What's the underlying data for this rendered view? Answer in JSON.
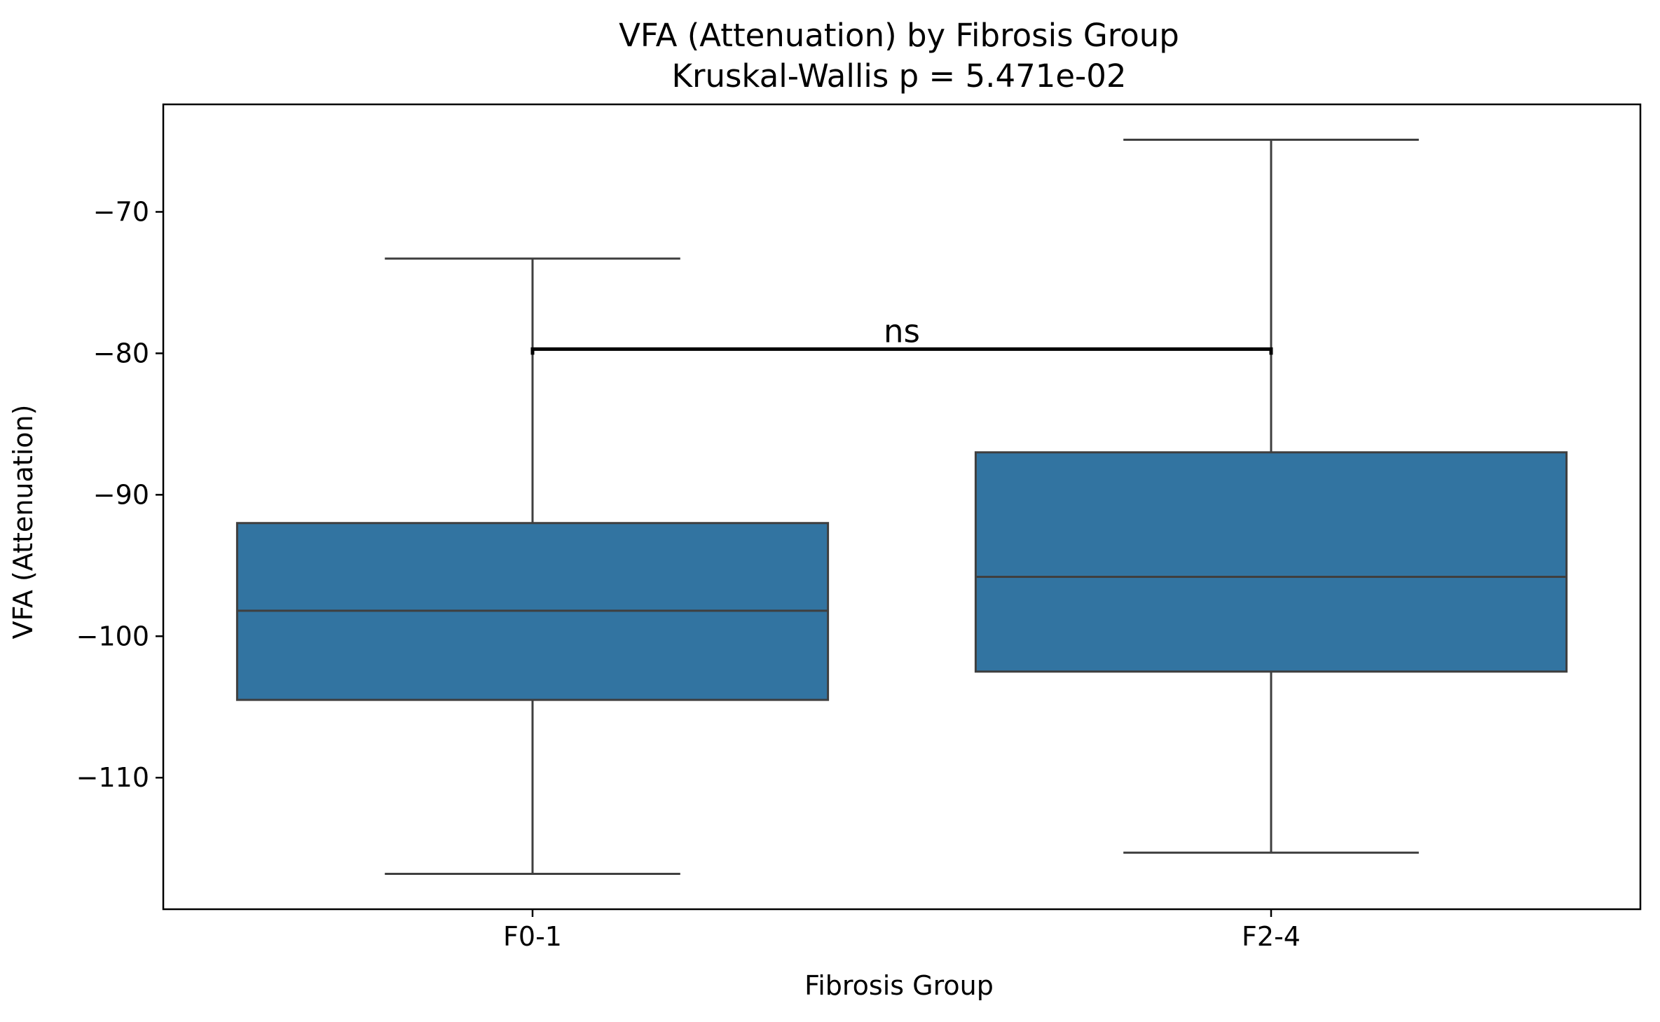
{
  "chart_data": {
    "type": "box",
    "title": "VFA (Attenuation) by Fibrosis Group",
    "subtitle": "Kruskal-Wallis p = 5.471e-02",
    "xlabel": "Fibrosis Group",
    "ylabel": "VFA (Attenuation)",
    "categories": [
      "F0-1",
      "F2-4"
    ],
    "boxes": [
      {
        "category": "F0-1",
        "whisker_low": -116.8,
        "q1": -104.5,
        "median": -98.2,
        "q3": -92.0,
        "whisker_high": -73.3
      },
      {
        "category": "F2-4",
        "whisker_low": -115.3,
        "q1": -102.5,
        "median": -95.8,
        "q3": -87.0,
        "whisker_high": -64.9
      }
    ],
    "ylim": [
      -119.3,
      -62.4
    ],
    "yticks": [
      -110,
      -100,
      -90,
      -80,
      -70
    ],
    "ytick_labels": [
      "−110",
      "−100",
      "−90",
      "−80",
      "−70"
    ],
    "annotation": {
      "text": "ns",
      "from": "F0-1",
      "to": "F2-4",
      "y": -79.7
    },
    "box_color": "#3274a1",
    "line_color": "#3f3f3f",
    "grid": false,
    "legend": "none"
  }
}
